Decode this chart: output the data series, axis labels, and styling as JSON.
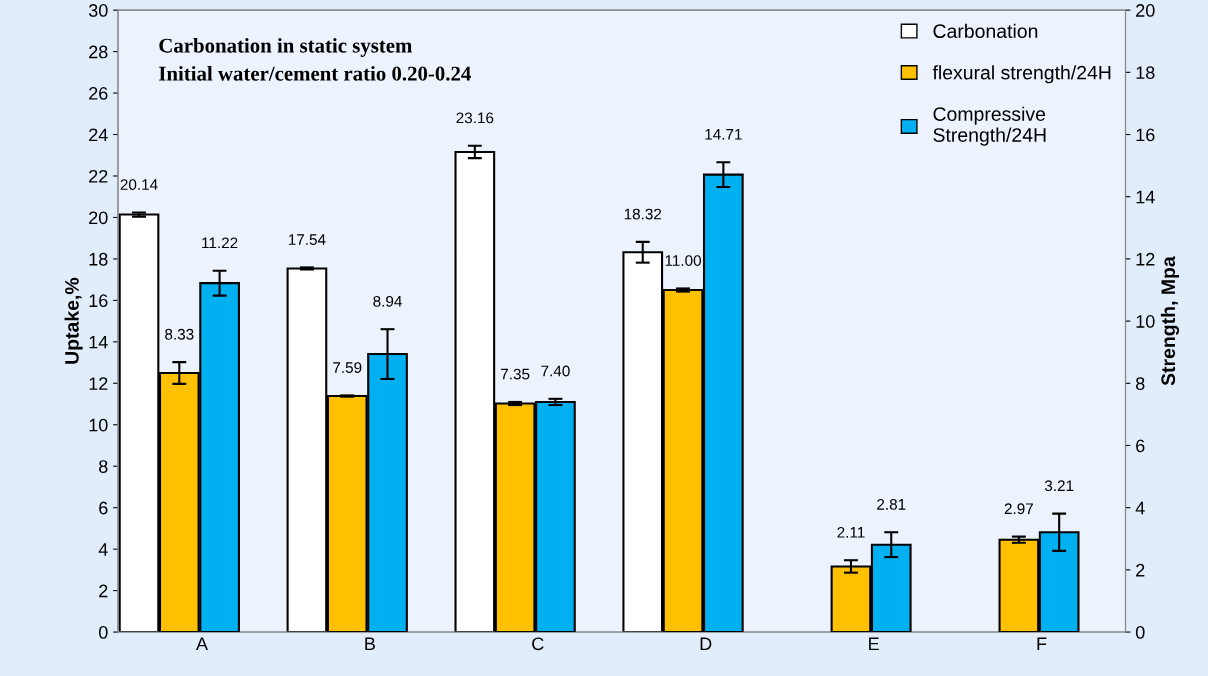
{
  "chart_data": {
    "type": "bar",
    "title": "Carbonation in static system",
    "subtitle": "Initial water/cement ratio 0.20-0.24",
    "ylabel": "Uptake,%",
    "y2label": "Strength, Mpa",
    "categories": [
      "A",
      "B",
      "C",
      "D",
      "E",
      "F"
    ],
    "series": [
      {
        "name": "Carbonation",
        "color": "#ffffff",
        "values": [
          20.14,
          17.54,
          23.16,
          18.32,
          null,
          null
        ],
        "errors": [
          0.1,
          0.05,
          0.3,
          0.5,
          null,
          null
        ],
        "value_labels": [
          "20.14",
          "17.54",
          "23.16",
          "18.32",
          null,
          null
        ]
      },
      {
        "name": "flexural strength/24H",
        "color": "#ffc000",
        "axis": "y2",
        "values": [
          8.33,
          7.59,
          7.35,
          11.0,
          2.11,
          2.97
        ],
        "errors": [
          0.35,
          0.02,
          0.05,
          0.05,
          0.2,
          0.1
        ],
        "value_labels": [
          "8.33",
          "7.59",
          "7.35",
          "11.00",
          "2.11",
          "2.97"
        ]
      },
      {
        "name": "Compressive\nStrength/24H",
        "color": "#00b0f0",
        "axis": "y2",
        "values": [
          11.22,
          8.94,
          7.4,
          14.71,
          2.81,
          3.21
        ],
        "errors": [
          0.4,
          0.8,
          0.1,
          0.4,
          0.4,
          0.6
        ],
        "value_labels": [
          "11.22",
          "8.94",
          "7.40",
          "14.71",
          "2.81",
          "3.21"
        ]
      }
    ],
    "ylim": [
      0,
      30
    ],
    "yticks": [
      0,
      2,
      4,
      6,
      8,
      10,
      12,
      14,
      16,
      18,
      20,
      22,
      24,
      26,
      28,
      30
    ],
    "y2lim": [
      0,
      20
    ],
    "y2ticks": [
      0,
      2,
      4,
      6,
      8,
      10,
      12,
      14,
      16,
      18,
      20
    ],
    "legend": "top right",
    "grid": false
  }
}
